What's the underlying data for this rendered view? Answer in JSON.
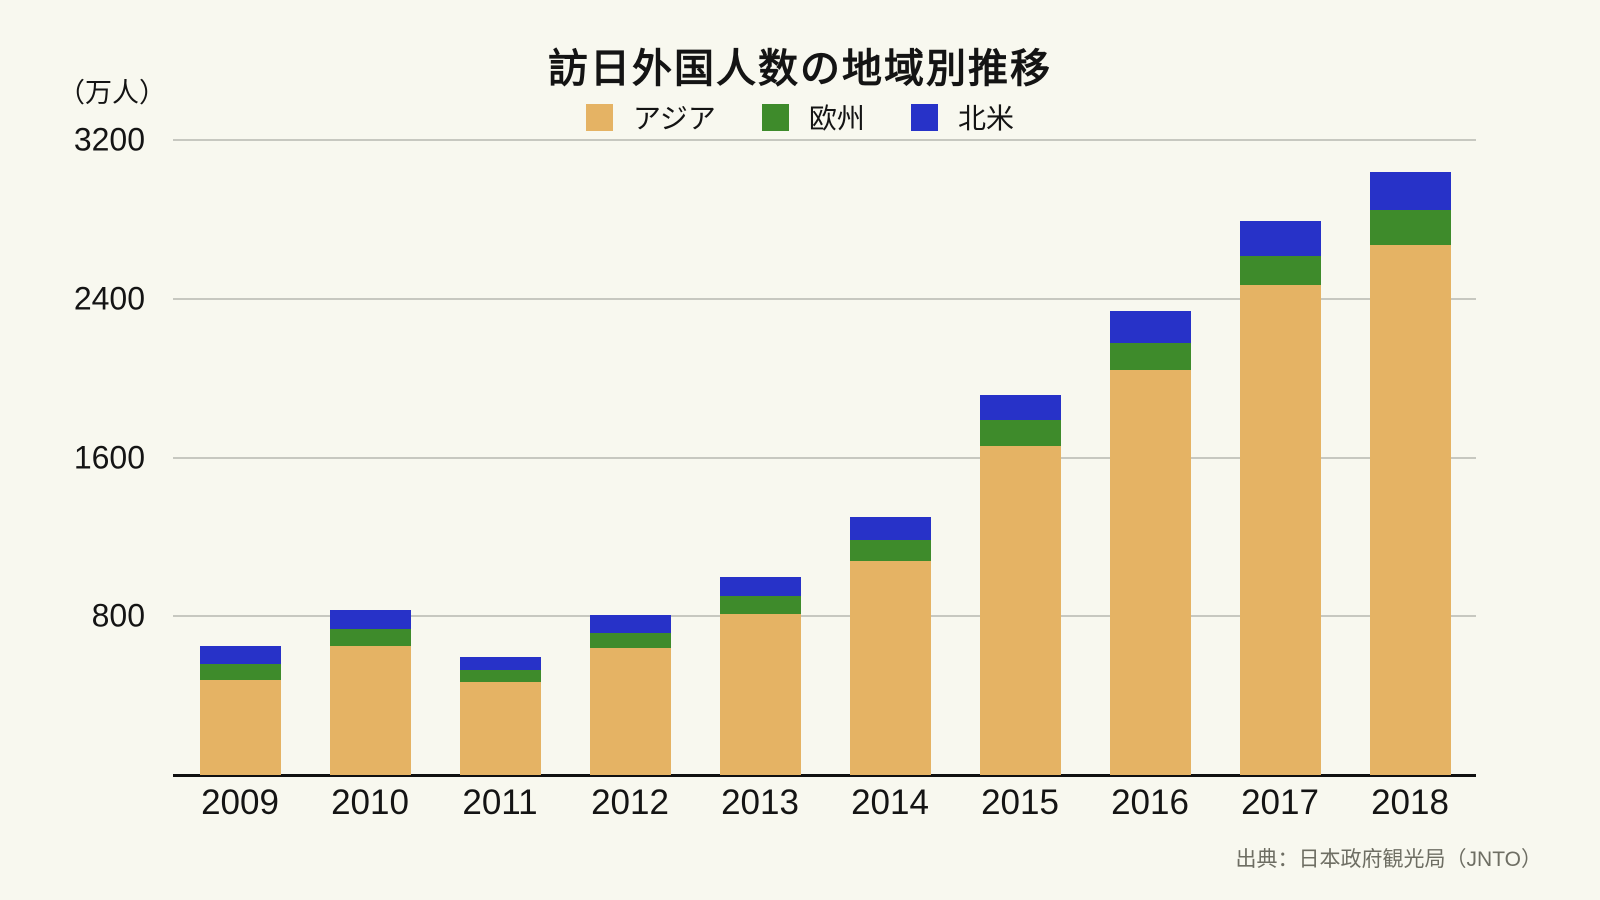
{
  "chart": {
    "title": "訪日外国人数の地域別推移",
    "unit_label": "（万人）",
    "source": "出典：日本政府観光局（JNTO）"
  },
  "chart_data": {
    "type": "bar",
    "stacked": true,
    "title": "訪日外国人数の地域別推移",
    "unit": "万人",
    "categories": [
      "2009",
      "2010",
      "2011",
      "2012",
      "2013",
      "2014",
      "2015",
      "2016",
      "2017",
      "2018"
    ],
    "series": [
      {
        "id": "asia",
        "name": "アジア",
        "color": "#e5b364",
        "values": [
          480,
          650,
          470,
          638,
          810,
          1080,
          1660,
          2040,
          2470,
          2670
        ]
      },
      {
        "id": "europe",
        "name": "欧州",
        "color": "#3e8b2b",
        "values": [
          80,
          84,
          59,
          79,
          90,
          104,
          127,
          138,
          147,
          175
        ]
      },
      {
        "id": "north-america",
        "name": "北米",
        "color": "#2732c8",
        "values": [
          90,
          97,
          68,
          88,
          100,
          115,
          128,
          158,
          177,
          192
        ]
      }
    ],
    "totals": [
      650,
      831,
      597,
      805,
      1000,
      1299,
      1915,
      2336,
      2794,
      3037
    ],
    "y_ticks": [
      800,
      1600,
      2400,
      3200
    ],
    "ylim": [
      0,
      3200
    ],
    "grid": true,
    "legend_position": "top",
    "xlabel": "",
    "ylabel": "（万人）",
    "source": "出典：日本政府観光局（JNTO）"
  }
}
